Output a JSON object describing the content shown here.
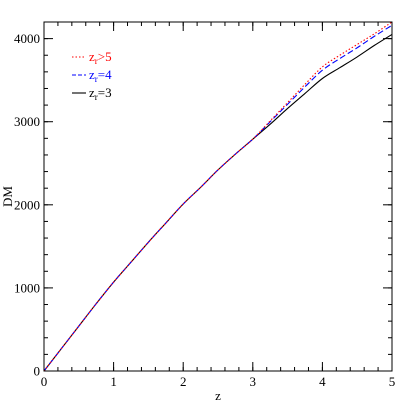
{
  "chart_data": {
    "type": "line",
    "xlabel": "z",
    "ylabel": "DM",
    "xlim": [
      0,
      5
    ],
    "ylim": [
      0,
      4200
    ],
    "x_ticks": [
      0,
      1,
      2,
      3,
      4,
      5
    ],
    "y_ticks": [
      0,
      1000,
      2000,
      3000,
      4000
    ],
    "x_tick_labels": [
      "0",
      "1",
      "2",
      "3",
      "4",
      "5"
    ],
    "y_tick_labels": [
      "0",
      "1000",
      "2000",
      "3000",
      "4000"
    ],
    "x_minor_step": 0.2,
    "y_minor_step": 200,
    "grid": false,
    "legend_position": "top-left",
    "series": [
      {
        "name": "zr>5",
        "legend": {
          "base": "z",
          "sub": "r",
          "rest": ">5"
        },
        "color": "#ff0000",
        "style": "dotted",
        "x": [
          0,
          0.25,
          0.5,
          0.75,
          1.0,
          1.25,
          1.5,
          1.75,
          2.0,
          2.25,
          2.5,
          2.75,
          3.0,
          3.25,
          3.5,
          3.75,
          4.0,
          4.25,
          4.5,
          4.75,
          5.0
        ],
        "y": [
          0,
          270,
          540,
          810,
          1070,
          1310,
          1550,
          1780,
          2010,
          2210,
          2420,
          2610,
          2790,
          3010,
          3230,
          3450,
          3660,
          3800,
          3930,
          4060,
          4200
        ]
      },
      {
        "name": "zr=4",
        "legend": {
          "base": "z",
          "sub": "r",
          "rest": "=4"
        },
        "color": "#0000ff",
        "style": "dashed",
        "x": [
          0,
          0.25,
          0.5,
          0.75,
          1.0,
          1.25,
          1.5,
          1.75,
          2.0,
          2.25,
          2.5,
          2.75,
          3.0,
          3.25,
          3.5,
          3.75,
          4.0,
          4.25,
          4.5,
          4.75,
          5.0
        ],
        "y": [
          0,
          270,
          540,
          810,
          1070,
          1310,
          1550,
          1780,
          2010,
          2210,
          2420,
          2610,
          2790,
          3000,
          3210,
          3420,
          3620,
          3760,
          3890,
          4030,
          4160
        ]
      },
      {
        "name": "zr=3",
        "legend": {
          "base": "z",
          "sub": "r",
          "rest": "=3"
        },
        "color": "#000000",
        "style": "solid",
        "x": [
          0,
          0.25,
          0.5,
          0.75,
          1.0,
          1.25,
          1.5,
          1.75,
          2.0,
          2.25,
          2.5,
          2.75,
          3.0,
          3.25,
          3.5,
          3.75,
          4.0,
          4.25,
          4.5,
          4.75,
          5.0
        ],
        "y": [
          0,
          270,
          540,
          810,
          1070,
          1310,
          1550,
          1780,
          2010,
          2210,
          2420,
          2610,
          2790,
          2970,
          3160,
          3340,
          3520,
          3650,
          3780,
          3920,
          4050
        ]
      }
    ]
  }
}
